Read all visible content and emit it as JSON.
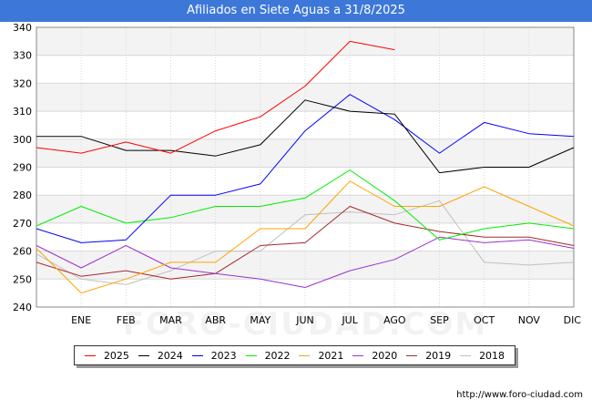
{
  "title": "Afiliados en Siete Aguas a 31/8/2025",
  "source": "http://www.foro-ciudad.com",
  "watermark": "FORO-CIUDAD.COM",
  "chart_data": {
    "type": "line",
    "categories": [
      "",
      "ENE",
      "FEB",
      "MAR",
      "ABR",
      "MAY",
      "JUN",
      "JUL",
      "AGO",
      "SEP",
      "OCT",
      "NOV",
      "DIC"
    ],
    "ylim": [
      240,
      340
    ],
    "yticks": [
      240,
      250,
      260,
      270,
      280,
      290,
      300,
      310,
      320,
      330,
      340
    ],
    "grid": true,
    "legend_position": "bottom",
    "series": [
      {
        "name": "2025",
        "color": "#ff0000",
        "values": [
          297,
          295,
          299,
          295,
          303,
          308,
          319,
          335,
          332,
          null,
          null,
          null,
          null
        ]
      },
      {
        "name": "2024",
        "color": "#000000",
        "values": [
          301,
          301,
          296,
          296,
          294,
          298,
          314,
          310,
          309,
          288,
          290,
          290,
          297
        ]
      },
      {
        "name": "2023",
        "color": "#0000ff",
        "values": [
          268,
          263,
          264,
          280,
          280,
          284,
          303,
          316,
          307,
          295,
          306,
          302,
          301
        ]
      },
      {
        "name": "2022",
        "color": "#00ee00",
        "values": [
          269,
          276,
          270,
          272,
          276,
          276,
          279,
          289,
          278,
          264,
          268,
          270,
          268
        ]
      },
      {
        "name": "2021",
        "color": "#ffa500",
        "values": [
          261,
          245,
          250,
          256,
          256,
          268,
          268,
          285,
          276,
          276,
          283,
          276,
          269
        ]
      },
      {
        "name": "2020",
        "color": "#9a32cd",
        "values": [
          262,
          254,
          262,
          254,
          252,
          250,
          247,
          253,
          257,
          265,
          263,
          264,
          261
        ]
      },
      {
        "name": "2019",
        "color": "#a52a2a",
        "values": [
          256,
          251,
          253,
          250,
          252,
          262,
          263,
          276,
          270,
          267,
          265,
          265,
          262
        ]
      },
      {
        "name": "2018",
        "color": "#c0c0c0",
        "values": [
          259,
          250,
          248,
          253,
          260,
          260,
          273,
          274,
          273,
          278,
          256,
          255,
          256
        ]
      }
    ]
  }
}
